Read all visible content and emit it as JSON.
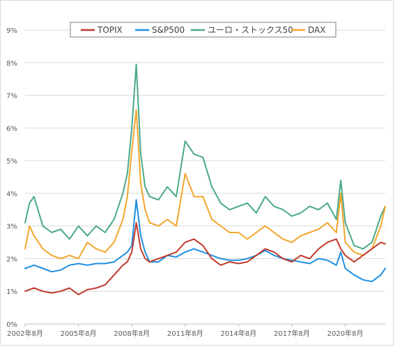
{
  "chart_data": {
    "type": "line",
    "title": "",
    "xlabel": "",
    "ylabel": "",
    "ylim": [
      0,
      9
    ],
    "y_unit": "%",
    "y_ticks": [
      "0%",
      "1%",
      "2%",
      "3%",
      "4%",
      "5%",
      "6%",
      "7%",
      "8%",
      "9%"
    ],
    "x_tick_labels": [
      "2002年8月",
      "2005年8月",
      "2008年8月",
      "2011年8月",
      "2014年8月",
      "2017年8月",
      "2020年8月"
    ],
    "x_range": [
      "2002-08",
      "2022-11"
    ],
    "grid": "horizontal",
    "legend": "top",
    "series": [
      {
        "name": "TOPIX",
        "color": "#c0392b",
        "points": [
          [
            "2002-08",
            1.0
          ],
          [
            "2003-02",
            1.1
          ],
          [
            "2003-08",
            1.0
          ],
          [
            "2004-02",
            0.95
          ],
          [
            "2004-08",
            1.0
          ],
          [
            "2005-02",
            1.1
          ],
          [
            "2005-08",
            0.9
          ],
          [
            "2006-02",
            1.05
          ],
          [
            "2006-08",
            1.1
          ],
          [
            "2007-02",
            1.2
          ],
          [
            "2007-08",
            1.5
          ],
          [
            "2008-02",
            1.8
          ],
          [
            "2008-05",
            1.9
          ],
          [
            "2008-08",
            2.2
          ],
          [
            "2008-11",
            3.1
          ],
          [
            "2009-02",
            2.3
          ],
          [
            "2009-05",
            2.0
          ],
          [
            "2009-08",
            1.9
          ],
          [
            "2010-02",
            2.0
          ],
          [
            "2010-08",
            2.1
          ],
          [
            "2011-02",
            2.2
          ],
          [
            "2011-08",
            2.5
          ],
          [
            "2012-02",
            2.6
          ],
          [
            "2012-08",
            2.4
          ],
          [
            "2013-02",
            2.0
          ],
          [
            "2013-08",
            1.8
          ],
          [
            "2014-02",
            1.9
          ],
          [
            "2014-08",
            1.85
          ],
          [
            "2015-02",
            1.9
          ],
          [
            "2015-08",
            2.1
          ],
          [
            "2016-02",
            2.3
          ],
          [
            "2016-08",
            2.2
          ],
          [
            "2017-02",
            2.0
          ],
          [
            "2017-08",
            1.9
          ],
          [
            "2018-02",
            2.1
          ],
          [
            "2018-08",
            2.0
          ],
          [
            "2019-02",
            2.3
          ],
          [
            "2019-08",
            2.5
          ],
          [
            "2020-02",
            2.6
          ],
          [
            "2020-05",
            2.3
          ],
          [
            "2020-08",
            2.1
          ],
          [
            "2021-02",
            1.9
          ],
          [
            "2021-08",
            2.1
          ],
          [
            "2022-02",
            2.3
          ],
          [
            "2022-08",
            2.5
          ],
          [
            "2022-11",
            2.45
          ]
        ]
      },
      {
        "name": "S&P500",
        "color": "#1f8fe0",
        "points": [
          [
            "2002-08",
            1.7
          ],
          [
            "2003-02",
            1.8
          ],
          [
            "2003-08",
            1.7
          ],
          [
            "2004-02",
            1.6
          ],
          [
            "2004-08",
            1.65
          ],
          [
            "2005-02",
            1.8
          ],
          [
            "2005-08",
            1.85
          ],
          [
            "2006-02",
            1.8
          ],
          [
            "2006-08",
            1.85
          ],
          [
            "2007-02",
            1.85
          ],
          [
            "2007-08",
            1.9
          ],
          [
            "2008-02",
            2.1
          ],
          [
            "2008-05",
            2.2
          ],
          [
            "2008-08",
            2.4
          ],
          [
            "2008-11",
            3.8
          ],
          [
            "2009-02",
            2.7
          ],
          [
            "2009-05",
            2.2
          ],
          [
            "2009-08",
            1.9
          ],
          [
            "2010-02",
            1.9
          ],
          [
            "2010-08",
            2.1
          ],
          [
            "2011-02",
            2.05
          ],
          [
            "2011-08",
            2.2
          ],
          [
            "2012-02",
            2.3
          ],
          [
            "2012-08",
            2.2
          ],
          [
            "2013-02",
            2.1
          ],
          [
            "2013-08",
            2.0
          ],
          [
            "2014-02",
            1.95
          ],
          [
            "2014-08",
            1.95
          ],
          [
            "2015-02",
            2.0
          ],
          [
            "2015-08",
            2.1
          ],
          [
            "2016-02",
            2.25
          ],
          [
            "2016-08",
            2.1
          ],
          [
            "2017-02",
            2.0
          ],
          [
            "2017-08",
            1.95
          ],
          [
            "2018-02",
            1.9
          ],
          [
            "2018-08",
            1.85
          ],
          [
            "2019-02",
            2.0
          ],
          [
            "2019-08",
            1.95
          ],
          [
            "2020-02",
            1.8
          ],
          [
            "2020-05",
            2.2
          ],
          [
            "2020-08",
            1.7
          ],
          [
            "2021-02",
            1.5
          ],
          [
            "2021-08",
            1.35
          ],
          [
            "2022-02",
            1.3
          ],
          [
            "2022-08",
            1.5
          ],
          [
            "2022-11",
            1.7
          ]
        ]
      },
      {
        "name": "ユーロ・ストックス50",
        "color": "#4aa88a",
        "points": [
          [
            "2002-08",
            3.1
          ],
          [
            "2002-11",
            3.7
          ],
          [
            "2003-02",
            3.9
          ],
          [
            "2003-08",
            3.0
          ],
          [
            "2004-02",
            2.8
          ],
          [
            "2004-08",
            2.9
          ],
          [
            "2005-02",
            2.6
          ],
          [
            "2005-08",
            3.0
          ],
          [
            "2006-02",
            2.7
          ],
          [
            "2006-08",
            3.0
          ],
          [
            "2007-02",
            2.8
          ],
          [
            "2007-08",
            3.2
          ],
          [
            "2008-02",
            4.0
          ],
          [
            "2008-05",
            4.6
          ],
          [
            "2008-08",
            6.0
          ],
          [
            "2008-11",
            7.95
          ],
          [
            "2009-02",
            5.2
          ],
          [
            "2009-05",
            4.2
          ],
          [
            "2009-08",
            3.9
          ],
          [
            "2010-02",
            3.8
          ],
          [
            "2010-08",
            4.2
          ],
          [
            "2011-02",
            3.9
          ],
          [
            "2011-08",
            5.6
          ],
          [
            "2012-02",
            5.2
          ],
          [
            "2012-08",
            5.1
          ],
          [
            "2013-02",
            4.2
          ],
          [
            "2013-08",
            3.7
          ],
          [
            "2014-02",
            3.5
          ],
          [
            "2014-08",
            3.6
          ],
          [
            "2015-02",
            3.7
          ],
          [
            "2015-08",
            3.4
          ],
          [
            "2016-02",
            3.9
          ],
          [
            "2016-08",
            3.6
          ],
          [
            "2017-02",
            3.5
          ],
          [
            "2017-08",
            3.3
          ],
          [
            "2018-02",
            3.4
          ],
          [
            "2018-08",
            3.6
          ],
          [
            "2019-02",
            3.5
          ],
          [
            "2019-08",
            3.7
          ],
          [
            "2020-02",
            3.2
          ],
          [
            "2020-05",
            4.4
          ],
          [
            "2020-08",
            3.1
          ],
          [
            "2021-02",
            2.4
          ],
          [
            "2021-08",
            2.3
          ],
          [
            "2022-02",
            2.5
          ],
          [
            "2022-08",
            3.3
          ],
          [
            "2022-11",
            3.6
          ]
        ]
      },
      {
        "name": "DAX",
        "color": "#f2a52b",
        "points": [
          [
            "2002-08",
            2.3
          ],
          [
            "2002-11",
            3.0
          ],
          [
            "2003-02",
            2.7
          ],
          [
            "2003-08",
            2.3
          ],
          [
            "2004-02",
            2.1
          ],
          [
            "2004-08",
            2.0
          ],
          [
            "2005-02",
            2.1
          ],
          [
            "2005-08",
            2.0
          ],
          [
            "2006-02",
            2.5
          ],
          [
            "2006-08",
            2.3
          ],
          [
            "2007-02",
            2.2
          ],
          [
            "2007-08",
            2.5
          ],
          [
            "2008-02",
            3.2
          ],
          [
            "2008-05",
            3.9
          ],
          [
            "2008-08",
            5.3
          ],
          [
            "2008-11",
            6.55
          ],
          [
            "2009-02",
            4.3
          ],
          [
            "2009-05",
            3.5
          ],
          [
            "2009-08",
            3.1
          ],
          [
            "2010-02",
            3.0
          ],
          [
            "2010-08",
            3.2
          ],
          [
            "2011-02",
            3.0
          ],
          [
            "2011-08",
            4.6
          ],
          [
            "2012-02",
            3.9
          ],
          [
            "2012-08",
            3.9
          ],
          [
            "2013-02",
            3.2
          ],
          [
            "2013-08",
            3.0
          ],
          [
            "2014-02",
            2.8
          ],
          [
            "2014-08",
            2.8
          ],
          [
            "2015-02",
            2.6
          ],
          [
            "2015-08",
            2.8
          ],
          [
            "2016-02",
            3.0
          ],
          [
            "2016-08",
            2.8
          ],
          [
            "2017-02",
            2.6
          ],
          [
            "2017-08",
            2.5
          ],
          [
            "2018-02",
            2.7
          ],
          [
            "2018-08",
            2.8
          ],
          [
            "2019-02",
            2.9
          ],
          [
            "2019-08",
            3.1
          ],
          [
            "2020-02",
            2.8
          ],
          [
            "2020-05",
            4.0
          ],
          [
            "2020-08",
            2.5
          ],
          [
            "2021-02",
            2.2
          ],
          [
            "2021-08",
            2.1
          ],
          [
            "2022-02",
            2.3
          ],
          [
            "2022-08",
            3.0
          ],
          [
            "2022-11",
            3.6
          ]
        ]
      }
    ]
  }
}
